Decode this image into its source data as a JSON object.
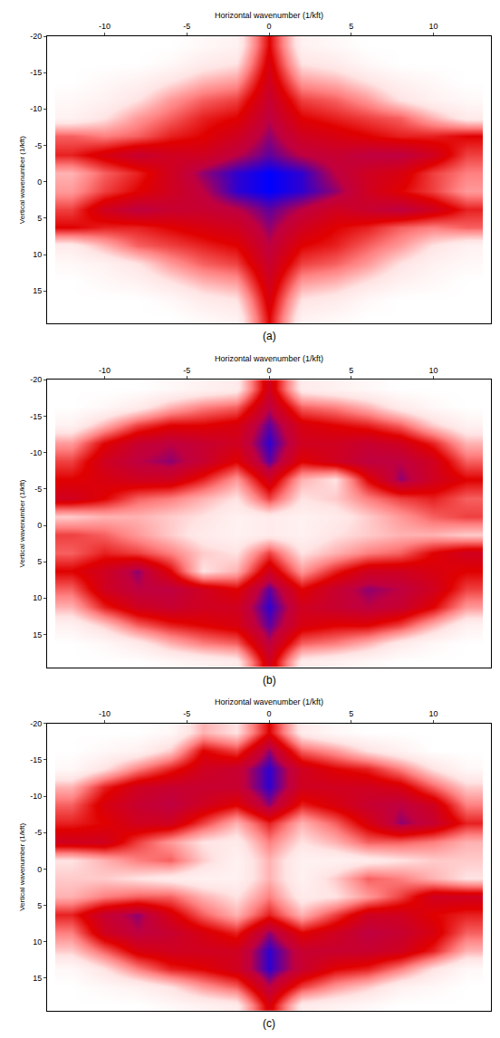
{
  "chart_data": [
    {
      "type": "heatmap",
      "title": "(a)",
      "x_label": "Horizontal wavenumber (1/kft)",
      "y_label": "Vertical wavenumber (1/kft)",
      "xlim": [
        -13.5,
        13.5
      ],
      "xticks": [
        -10,
        -5,
        0,
        5,
        10
      ],
      "ylim": [
        -20,
        19.5
      ],
      "yticks": [
        -20,
        -15,
        -10,
        -5,
        0,
        5,
        10,
        15
      ],
      "zlim": [
        0,
        1
      ],
      "x": [
        -12,
        -10,
        -8,
        -6,
        -4,
        -2,
        0,
        2,
        4,
        6,
        8,
        10,
        12
      ],
      "y": [
        -18.75,
        -16.25,
        -13.75,
        -11.25,
        -8.75,
        -6.25,
        -3.75,
        -1.25,
        1.25,
        3.75,
        6.25,
        8.75,
        11.25,
        13.75,
        16.25,
        18.75
      ],
      "z": [
        [
          0,
          0,
          0,
          0,
          0.05,
          0.1,
          0.6,
          0.1,
          0.05,
          0,
          0,
          0,
          0
        ],
        [
          0,
          0,
          0,
          0.05,
          0.15,
          0.2,
          0.65,
          0.2,
          0.15,
          0.05,
          0,
          0,
          0
        ],
        [
          0,
          0.05,
          0.1,
          0.2,
          0.3,
          0.35,
          0.7,
          0.35,
          0.3,
          0.2,
          0.1,
          0.05,
          0
        ],
        [
          0.05,
          0.1,
          0.2,
          0.35,
          0.45,
          0.5,
          0.75,
          0.5,
          0.45,
          0.35,
          0.2,
          0.1,
          0.05
        ],
        [
          0.1,
          0.2,
          0.35,
          0.45,
          0.55,
          0.6,
          0.8,
          0.6,
          0.55,
          0.5,
          0.45,
          0.3,
          0.15
        ],
        [
          0.45,
          0.4,
          0.45,
          0.55,
          0.6,
          0.7,
          0.85,
          0.7,
          0.65,
          0.6,
          0.55,
          0.55,
          0.6
        ],
        [
          0.55,
          0.65,
          0.75,
          0.7,
          0.7,
          0.8,
          0.9,
          0.8,
          0.75,
          0.8,
          0.8,
          0.7,
          0.5
        ],
        [
          0.3,
          0.45,
          0.55,
          0.7,
          0.85,
          0.95,
          1,
          0.95,
          0.8,
          0.7,
          0.65,
          0.5,
          0.4
        ],
        [
          0.35,
          0.5,
          0.6,
          0.7,
          0.8,
          0.95,
          1,
          0.95,
          0.85,
          0.7,
          0.6,
          0.5,
          0.35
        ],
        [
          0.5,
          0.7,
          0.8,
          0.75,
          0.75,
          0.8,
          0.9,
          0.8,
          0.7,
          0.75,
          0.8,
          0.7,
          0.55
        ],
        [
          0.6,
          0.55,
          0.55,
          0.6,
          0.65,
          0.7,
          0.85,
          0.7,
          0.6,
          0.55,
          0.45,
          0.4,
          0.45
        ],
        [
          0.15,
          0.3,
          0.45,
          0.5,
          0.55,
          0.6,
          0.8,
          0.6,
          0.55,
          0.45,
          0.35,
          0.2,
          0.1
        ],
        [
          0.05,
          0.1,
          0.2,
          0.35,
          0.45,
          0.5,
          0.75,
          0.5,
          0.45,
          0.35,
          0.2,
          0.1,
          0.05
        ],
        [
          0,
          0.05,
          0.1,
          0.2,
          0.3,
          0.35,
          0.7,
          0.35,
          0.3,
          0.2,
          0.1,
          0.05,
          0
        ],
        [
          0,
          0,
          0,
          0.05,
          0.15,
          0.2,
          0.65,
          0.2,
          0.15,
          0.05,
          0,
          0,
          0
        ],
        [
          0,
          0,
          0,
          0,
          0.05,
          0.1,
          0.6,
          0.1,
          0.05,
          0,
          0,
          0,
          0
        ]
      ]
    },
    {
      "type": "heatmap",
      "title": "(b)",
      "x_label": "Horizontal wavenumber (1/kft)",
      "y_label": "Vertical wavenumber (1/kft)",
      "xlim": [
        -13.5,
        13.5
      ],
      "xticks": [
        -10,
        -5,
        0,
        5,
        10
      ],
      "ylim": [
        -20,
        19.5
      ],
      "yticks": [
        -20,
        -15,
        -10,
        -5,
        0,
        5,
        10,
        15
      ],
      "zlim": [
        0,
        1
      ],
      "x": [
        -12,
        -10,
        -8,
        -6,
        -4,
        -2,
        0,
        2,
        4,
        6,
        8,
        10,
        12
      ],
      "y": [
        -18.75,
        -16.25,
        -13.75,
        -11.25,
        -8.75,
        -6.25,
        -3.75,
        -1.25,
        1.25,
        3.75,
        6.25,
        8.75,
        11.25,
        13.75,
        16.25,
        18.75
      ],
      "z": [
        [
          0,
          0,
          0,
          0.05,
          0.1,
          0.15,
          0.7,
          0.15,
          0.1,
          0.05,
          0,
          0,
          0
        ],
        [
          0,
          0.05,
          0.15,
          0.3,
          0.4,
          0.45,
          0.8,
          0.45,
          0.4,
          0.3,
          0.15,
          0.05,
          0
        ],
        [
          0.1,
          0.3,
          0.5,
          0.6,
          0.6,
          0.65,
          0.9,
          0.65,
          0.6,
          0.55,
          0.45,
          0.25,
          0.1
        ],
        [
          0.35,
          0.6,
          0.75,
          0.8,
          0.75,
          0.7,
          0.95,
          0.7,
          0.7,
          0.75,
          0.7,
          0.55,
          0.3
        ],
        [
          0.5,
          0.7,
          0.8,
          0.85,
          0.75,
          0.6,
          0.9,
          0.6,
          0.7,
          0.8,
          0.8,
          0.7,
          0.45
        ],
        [
          0.6,
          0.65,
          0.7,
          0.7,
          0.55,
          0.35,
          0.7,
          0.3,
          0.2,
          0.6,
          0.85,
          0.7,
          0.6
        ],
        [
          0.7,
          0.6,
          0.45,
          0.4,
          0.3,
          0.2,
          0.5,
          0.2,
          0.25,
          0.4,
          0.5,
          0.55,
          0.45
        ],
        [
          0.25,
          0.3,
          0.3,
          0.25,
          0.2,
          0.1,
          0.15,
          0.1,
          0.15,
          0.25,
          0.35,
          0.45,
          0.5
        ],
        [
          0.5,
          0.45,
          0.35,
          0.25,
          0.15,
          0.1,
          0.15,
          0.1,
          0.2,
          0.25,
          0.3,
          0.3,
          0.25
        ],
        [
          0.45,
          0.55,
          0.5,
          0.4,
          0.25,
          0.2,
          0.5,
          0.2,
          0.3,
          0.4,
          0.45,
          0.6,
          0.7
        ],
        [
          0.6,
          0.7,
          0.85,
          0.6,
          0.2,
          0.3,
          0.7,
          0.35,
          0.55,
          0.7,
          0.7,
          0.65,
          0.6
        ],
        [
          0.45,
          0.7,
          0.8,
          0.8,
          0.7,
          0.6,
          0.9,
          0.6,
          0.75,
          0.85,
          0.8,
          0.7,
          0.5
        ],
        [
          0.3,
          0.55,
          0.7,
          0.75,
          0.7,
          0.7,
          0.95,
          0.7,
          0.75,
          0.8,
          0.75,
          0.6,
          0.35
        ],
        [
          0.1,
          0.25,
          0.45,
          0.55,
          0.6,
          0.65,
          0.9,
          0.65,
          0.6,
          0.6,
          0.5,
          0.3,
          0.1
        ],
        [
          0,
          0.05,
          0.15,
          0.3,
          0.4,
          0.45,
          0.8,
          0.45,
          0.4,
          0.3,
          0.15,
          0.05,
          0
        ],
        [
          0,
          0,
          0,
          0.05,
          0.1,
          0.15,
          0.7,
          0.15,
          0.1,
          0.05,
          0,
          0,
          0
        ]
      ]
    },
    {
      "type": "heatmap",
      "title": "(c)",
      "x_label": "Horizontal wavenumber (1/kft)",
      "y_label": "Vertical wavenumber (1/kft)",
      "xlim": [
        -13.5,
        13.5
      ],
      "xticks": [
        -10,
        -5,
        0,
        5,
        10
      ],
      "ylim": [
        -20,
        19.5
      ],
      "yticks": [
        -20,
        -15,
        -10,
        -5,
        0,
        5,
        10,
        15
      ],
      "zlim": [
        0,
        1
      ],
      "x": [
        -12,
        -10,
        -8,
        -6,
        -4,
        -2,
        0,
        2,
        4,
        6,
        8,
        10,
        12
      ],
      "y": [
        -18.75,
        -16.25,
        -13.75,
        -11.25,
        -8.75,
        -6.25,
        -3.75,
        -1.25,
        1.25,
        3.75,
        6.25,
        8.75,
        11.25,
        13.75,
        16.25,
        18.75
      ],
      "z": [
        [
          0,
          0,
          0,
          0.05,
          0.3,
          0.2,
          0.6,
          0.15,
          0.05,
          0,
          0,
          0,
          0
        ],
        [
          0,
          0.05,
          0.1,
          0.25,
          0.6,
          0.5,
          0.85,
          0.45,
          0.35,
          0.2,
          0.1,
          0,
          0
        ],
        [
          0.05,
          0.2,
          0.4,
          0.55,
          0.7,
          0.75,
          0.95,
          0.7,
          0.6,
          0.55,
          0.4,
          0.2,
          0.05
        ],
        [
          0.3,
          0.55,
          0.7,
          0.75,
          0.75,
          0.75,
          0.95,
          0.7,
          0.7,
          0.7,
          0.65,
          0.45,
          0.25
        ],
        [
          0.45,
          0.65,
          0.75,
          0.8,
          0.7,
          0.6,
          0.85,
          0.55,
          0.65,
          0.75,
          0.8,
          0.7,
          0.4
        ],
        [
          0.55,
          0.6,
          0.7,
          0.7,
          0.5,
          0.3,
          0.55,
          0.3,
          0.45,
          0.65,
          0.85,
          0.75,
          0.55
        ],
        [
          0.7,
          0.7,
          0.5,
          0.35,
          0.2,
          0.15,
          0.4,
          0.2,
          0.3,
          0.45,
          0.45,
          0.4,
          0.3
        ],
        [
          0.2,
          0.3,
          0.4,
          0.45,
          0.25,
          0.1,
          0.3,
          0.1,
          0.1,
          0.15,
          0.2,
          0.25,
          0.25
        ],
        [
          0.25,
          0.25,
          0.2,
          0.15,
          0.1,
          0.1,
          0.3,
          0.1,
          0.25,
          0.45,
          0.4,
          0.3,
          0.2
        ],
        [
          0.3,
          0.4,
          0.45,
          0.45,
          0.3,
          0.2,
          0.4,
          0.15,
          0.2,
          0.35,
          0.5,
          0.7,
          0.7
        ],
        [
          0.55,
          0.75,
          0.85,
          0.65,
          0.45,
          0.3,
          0.55,
          0.3,
          0.5,
          0.7,
          0.7,
          0.6,
          0.55
        ],
        [
          0.4,
          0.7,
          0.8,
          0.75,
          0.65,
          0.55,
          0.85,
          0.6,
          0.7,
          0.8,
          0.75,
          0.65,
          0.45
        ],
        [
          0.25,
          0.45,
          0.65,
          0.7,
          0.7,
          0.7,
          0.95,
          0.75,
          0.75,
          0.75,
          0.7,
          0.55,
          0.3
        ],
        [
          0.05,
          0.2,
          0.4,
          0.55,
          0.6,
          0.7,
          0.95,
          0.75,
          0.6,
          0.55,
          0.4,
          0.2,
          0.05
        ],
        [
          0,
          0.05,
          0.1,
          0.2,
          0.35,
          0.45,
          0.8,
          0.5,
          0.35,
          0.25,
          0.1,
          0.05,
          0
        ],
        [
          0,
          0,
          0,
          0.05,
          0.1,
          0.15,
          0.65,
          0.15,
          0.1,
          0.05,
          0,
          0,
          0
        ]
      ]
    }
  ]
}
